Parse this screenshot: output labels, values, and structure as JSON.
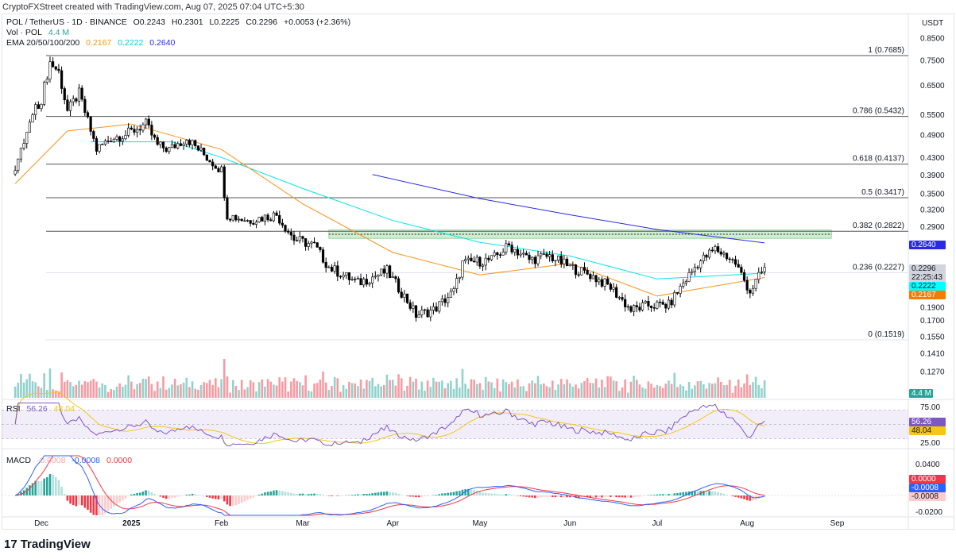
{
  "credit": "CryptoFXStreet created with TradingView.com, Aug 07, 2025 07:04 UTC+5:30",
  "header": {
    "symbol": "POL / TetherUS · 1D · BINANCE",
    "open": "O0.2243",
    "high": "H0.2301",
    "low": "L0.2225",
    "close": "C0.2296",
    "change": "+0.0053 (+2.36%)",
    "vol_label": "Vol · POL",
    "vol_value": "4.4 M",
    "ema_label": "EMA 20/50/100/200",
    "ema_values": [
      "0.2167",
      "0.2222",
      "0.2640"
    ]
  },
  "currency": "USDT",
  "colors": {
    "up": "#000000",
    "down": "#000000",
    "ema50": "#f7931a",
    "ema100": "#00e5e5",
    "ema200": "#2a2ae0",
    "zone": "#b9e6bd",
    "rsi": "#7e57c2",
    "rsi_ma": "#f5c518",
    "macd": "#2962ff",
    "signal": "#f23645",
    "hist_up": "#26a69a",
    "hist_down": "#f23645"
  },
  "chart_data": {
    "type": "candlestick",
    "scale": "log",
    "ylim": [
      0.12,
      0.85
    ],
    "price_ticks": [
      "0.8500",
      "0.7500",
      "0.6500",
      "0.5500",
      "0.4900",
      "0.4300",
      "0.3900",
      "0.3500",
      "0.3200",
      "0.2900",
      "0.1900",
      "0.1700",
      "0.1550",
      "0.1410",
      "0.1270"
    ],
    "time_ticks": [
      "Dec",
      "2025",
      "Feb",
      "Mar",
      "Apr",
      "May",
      "Jun",
      "Jul",
      "Aug",
      "Sep"
    ],
    "close_path": [
      [
        "2024-11-22",
        0.4
      ],
      [
        "2024-11-28",
        0.55
      ],
      [
        "2024-12-01",
        0.6
      ],
      [
        "2024-12-04",
        0.74
      ],
      [
        "2024-12-07",
        0.7
      ],
      [
        "2024-12-10",
        0.56
      ],
      [
        "2024-12-14",
        0.62
      ],
      [
        "2024-12-20",
        0.45
      ],
      [
        "2024-12-25",
        0.48
      ],
      [
        "2024-12-30",
        0.49
      ],
      [
        "2025-01-06",
        0.52
      ],
      [
        "2025-01-10",
        0.46
      ],
      [
        "2025-01-14",
        0.45
      ],
      [
        "2025-01-20",
        0.48
      ],
      [
        "2025-01-27",
        0.43
      ],
      [
        "2025-02-01",
        0.4
      ],
      [
        "2025-02-03",
        0.31
      ],
      [
        "2025-02-10",
        0.3
      ],
      [
        "2025-02-20",
        0.31
      ],
      [
        "2025-02-26",
        0.27
      ],
      [
        "2025-03-05",
        0.26
      ],
      [
        "2025-03-10",
        0.23
      ],
      [
        "2025-03-20",
        0.21
      ],
      [
        "2025-03-30",
        0.225
      ],
      [
        "2025-04-06",
        0.19
      ],
      [
        "2025-04-09",
        0.175
      ],
      [
        "2025-04-15",
        0.18
      ],
      [
        "2025-04-22",
        0.2
      ],
      [
        "2025-04-25",
        0.235
      ],
      [
        "2025-05-05",
        0.24
      ],
      [
        "2025-05-11",
        0.26
      ],
      [
        "2025-05-18",
        0.24
      ],
      [
        "2025-05-25",
        0.245
      ],
      [
        "2025-06-01",
        0.23
      ],
      [
        "2025-06-08",
        0.22
      ],
      [
        "2025-06-15",
        0.205
      ],
      [
        "2025-06-22",
        0.18
      ],
      [
        "2025-06-28",
        0.185
      ],
      [
        "2025-07-05",
        0.185
      ],
      [
        "2025-07-10",
        0.21
      ],
      [
        "2025-07-15",
        0.235
      ],
      [
        "2025-07-21",
        0.255
      ],
      [
        "2025-07-25",
        0.245
      ],
      [
        "2025-07-28",
        0.235
      ],
      [
        "2025-08-02",
        0.2
      ],
      [
        "2025-08-07",
        0.2296
      ]
    ],
    "ema_paths": {
      "ema50": [
        [
          "2024-11-22",
          0.37
        ],
        [
          "2024-12-10",
          0.5
        ],
        [
          "2025-01-01",
          0.52
        ],
        [
          "2025-02-01",
          0.45
        ],
        [
          "2025-03-01",
          0.33
        ],
        [
          "2025-04-01",
          0.25
        ],
        [
          "2025-05-01",
          0.22
        ],
        [
          "2025-06-01",
          0.235
        ],
        [
          "2025-07-01",
          0.195
        ],
        [
          "2025-08-07",
          0.2167
        ]
      ],
      "ema100": [
        [
          "2024-12-18",
          0.47
        ],
        [
          "2025-01-15",
          0.47
        ],
        [
          "2025-02-01",
          0.43
        ],
        [
          "2025-03-01",
          0.36
        ],
        [
          "2025-04-01",
          0.3
        ],
        [
          "2025-05-01",
          0.265
        ],
        [
          "2025-06-01",
          0.245
        ],
        [
          "2025-07-01",
          0.215
        ],
        [
          "2025-08-07",
          0.2222
        ]
      ],
      "ema200": [
        [
          "2025-03-25",
          0.39
        ],
        [
          "2025-05-01",
          0.34
        ],
        [
          "2025-06-01",
          0.31
        ],
        [
          "2025-07-01",
          0.285
        ],
        [
          "2025-08-07",
          0.264
        ]
      ]
    },
    "fib_levels": [
      {
        "label": "1 (0.7685)",
        "price": 0.7685
      },
      {
        "label": "0.786 (0.5432)",
        "price": 0.5432
      },
      {
        "label": "0.618 (0.4137)",
        "price": 0.4137
      },
      {
        "label": "0.5 (0.3417)",
        "price": 0.3417
      },
      {
        "label": "0.382 (0.2822)",
        "price": 0.2822
      },
      {
        "label": "0.236 (0.2227)",
        "price": 0.2227
      },
      {
        "label": "0 (0.1519)",
        "price": 0.1519
      }
    ],
    "resistance_zone": {
      "from": "2025-03-10",
      "to": "2025-08-30",
      "low": 0.271,
      "high": 0.284
    },
    "tags": {
      "ema200": "0.2640",
      "last": "0.2296",
      "countdown": "22:25:43",
      "ema100": "0.2222",
      "ema50": "0.2167",
      "volume": "4.4 M"
    }
  },
  "rsi": {
    "label": "RSI",
    "value": "56.26",
    "ma": "48.04",
    "ticks": [
      "75.00",
      "25.00"
    ]
  },
  "macd": {
    "label": "MACD",
    "hist": "-0.0008",
    "macd": "-0.0008",
    "signal": "0.0000",
    "ticks": [
      "0.0400",
      "-0.0200"
    ],
    "tags": [
      "0.0000",
      "-0.0008",
      "-0.0008"
    ]
  },
  "brand": "TradingView"
}
